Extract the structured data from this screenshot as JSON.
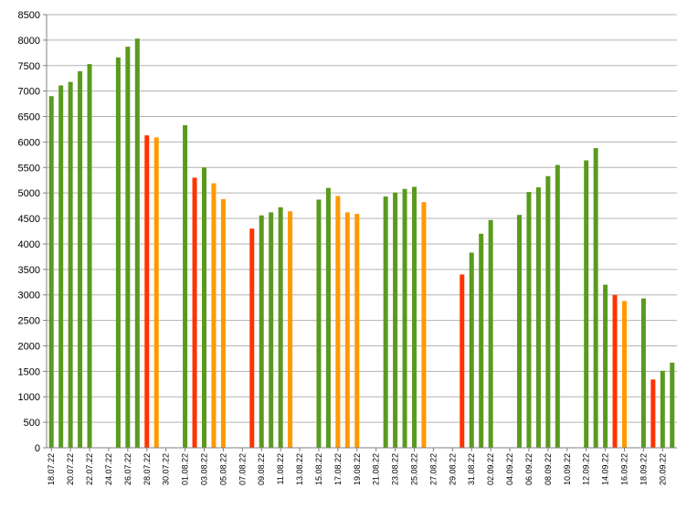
{
  "chart_data": {
    "type": "bar",
    "title": "",
    "xlabel": "",
    "ylabel": "",
    "ylim": [
      0,
      8500
    ],
    "ytick_step": 500,
    "grid": "horizontal",
    "legend": "none",
    "colors": {
      "green": "#5a9a1e",
      "red": "#ff3300",
      "orange": "#ff9900",
      "grid": "#b3b3b3",
      "axis": "#808080"
    },
    "start_date": "18.07.22",
    "categories": [
      "18.07.22",
      "19.07.22",
      "20.07.22",
      "21.07.22",
      "22.07.22",
      "23.07.22",
      "24.07.22",
      "25.07.22",
      "26.07.22",
      "27.07.22",
      "28.07.22",
      "29.07.22",
      "30.07.22",
      "31.07.22",
      "01.08.22",
      "02.08.22",
      "03.08.22",
      "04.08.22",
      "05.08.22",
      "06.08.22",
      "07.08.22",
      "08.08.22",
      "09.08.22",
      "10.08.22",
      "11.08.22",
      "12.08.22",
      "13.08.22",
      "14.08.22",
      "15.08.22",
      "16.08.22",
      "17.08.22",
      "18.08.22",
      "19.08.22",
      "20.08.22",
      "21.08.22",
      "22.08.22",
      "23.08.22",
      "24.08.22",
      "25.08.22",
      "26.08.22",
      "27.08.22",
      "28.08.22",
      "29.08.22",
      "30.08.22",
      "31.08.22",
      "01.09.22",
      "02.09.22",
      "03.09.22",
      "04.09.22",
      "05.09.22",
      "06.09.22",
      "07.09.22",
      "08.09.22",
      "09.09.22",
      "10.09.22",
      "11.09.22",
      "12.09.22",
      "13.09.22",
      "14.09.22",
      "15.09.22",
      "16.09.22",
      "17.09.22",
      "18.09.22",
      "19.09.22",
      "20.09.22",
      "21.09.22"
    ],
    "x_tick_labels": [
      "18.07.22",
      "20.07.22",
      "22.07.22",
      "24.07.22",
      "26.07.22",
      "28.07.22",
      "30.07.22",
      "01.08.22",
      "03.08.22",
      "05.08.22",
      "07.08.22",
      "09.08.22",
      "11.08.22",
      "13.08.22",
      "15.08.22",
      "17.08.22",
      "19.08.22",
      "21.08.22",
      "23.08.22",
      "25.08.22",
      "27.08.22",
      "29.08.22",
      "31.08.22",
      "02.09.22",
      "04.09.22",
      "06.09.22",
      "08.09.22",
      "10.09.22",
      "12.09.22",
      "14.09.22",
      "16.09.22",
      "18.09.22",
      "20.09.22"
    ],
    "values": [
      6900,
      7110,
      7180,
      7390,
      7530,
      null,
      null,
      7660,
      7870,
      8030,
      6130,
      6090,
      null,
      null,
      6330,
      5300,
      5500,
      5190,
      4880,
      null,
      null,
      4300,
      4560,
      4620,
      4720,
      4640,
      null,
      null,
      4870,
      5100,
      4940,
      4620,
      4590,
      null,
      null,
      4930,
      5010,
      5080,
      5120,
      4820,
      null,
      null,
      null,
      3400,
      3830,
      4200,
      4470,
      null,
      null,
      4570,
      5020,
      5110,
      5330,
      5550,
      null,
      null,
      5640,
      5880,
      3200,
      3000,
      2880,
      null,
      2930,
      1340,
      1510,
      1670
    ],
    "bar_colors": [
      "green",
      "green",
      "green",
      "green",
      "green",
      null,
      null,
      "green",
      "green",
      "green",
      "red",
      "orange",
      null,
      null,
      "green",
      "red",
      "green",
      "orange",
      "orange",
      null,
      null,
      "red",
      "green",
      "green",
      "green",
      "orange",
      null,
      null,
      "green",
      "green",
      "orange",
      "orange",
      "orange",
      null,
      null,
      "green",
      "green",
      "green",
      "green",
      "orange",
      null,
      null,
      null,
      "red",
      "green",
      "green",
      "green",
      null,
      null,
      "green",
      "green",
      "green",
      "green",
      "green",
      null,
      null,
      "green",
      "green",
      "green",
      "red",
      "orange",
      null,
      "green",
      "red",
      "green",
      "green"
    ]
  }
}
